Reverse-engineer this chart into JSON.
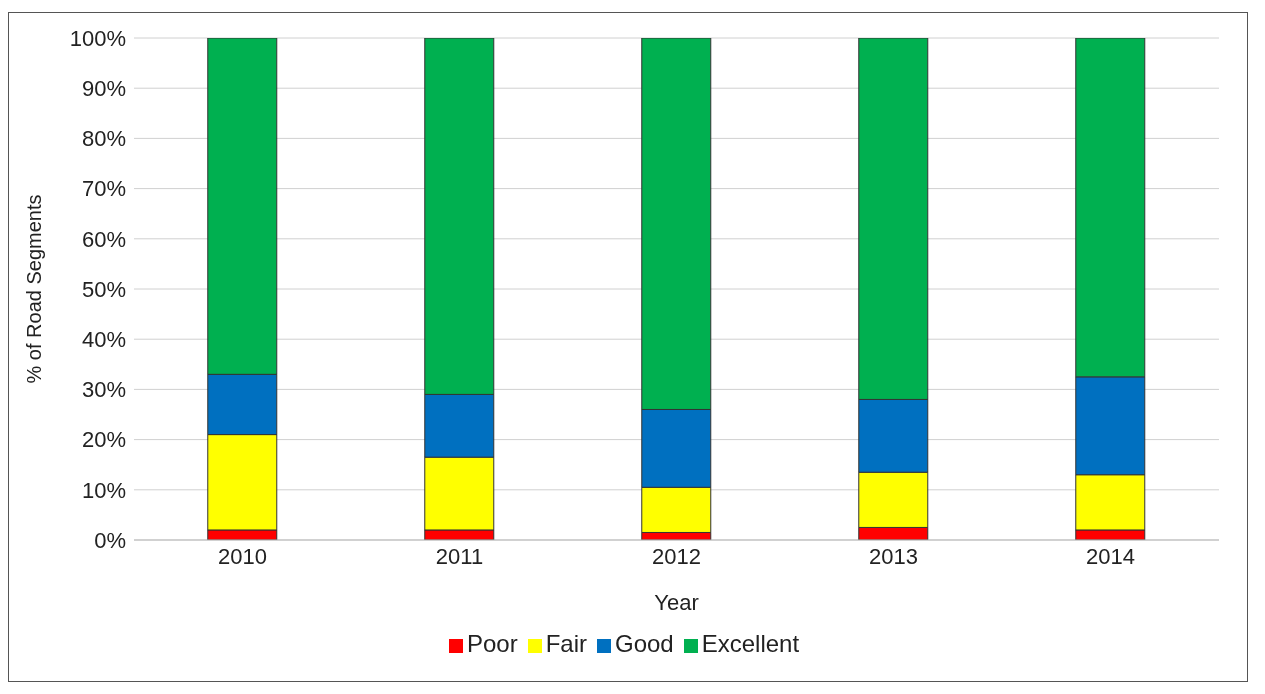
{
  "chart_data": {
    "type": "bar",
    "stacked": true,
    "xlabel": "Year",
    "ylabel": "% of Road Segments",
    "categories": [
      "2010",
      "2011",
      "2012",
      "2013",
      "2014"
    ],
    "series": [
      {
        "name": "Poor",
        "color": "#ff0000",
        "values": [
          2,
          2,
          1.5,
          2.5,
          2
        ]
      },
      {
        "name": "Fair",
        "color": "#ffff00",
        "values": [
          19,
          14.5,
          9,
          11,
          11
        ]
      },
      {
        "name": "Good",
        "color": "#0070c0",
        "values": [
          12,
          12.5,
          15.5,
          14.5,
          19.5
        ]
      },
      {
        "name": "Excellent",
        "color": "#00b050",
        "values": [
          67,
          71,
          74,
          72,
          67.5
        ]
      }
    ],
    "ylim": [
      0,
      100
    ],
    "yticks": [
      {
        "value": 0,
        "label": "0%"
      },
      {
        "value": 10,
        "label": "10%"
      },
      {
        "value": 20,
        "label": "20%"
      },
      {
        "value": 30,
        "label": "30%"
      },
      {
        "value": 40,
        "label": "40%"
      },
      {
        "value": 50,
        "label": "50%"
      },
      {
        "value": 60,
        "label": "60%"
      },
      {
        "value": 70,
        "label": "70%"
      },
      {
        "value": 80,
        "label": "80%"
      },
      {
        "value": 90,
        "label": "90%"
      },
      {
        "value": 100,
        "label": "100%"
      }
    ],
    "grid": "y",
    "legend": "bottom"
  }
}
